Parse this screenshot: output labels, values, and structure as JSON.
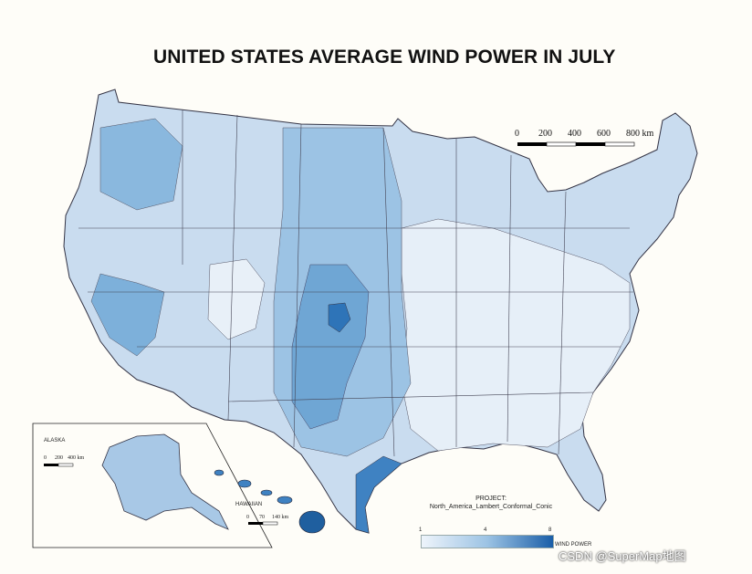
{
  "title": "UNITED STATES AVERAGE WIND POWER IN JULY",
  "scale_bar": {
    "labels": [
      "0",
      "200",
      "400",
      "600",
      "800 km"
    ]
  },
  "inset_alaska": {
    "label": "ALASKA",
    "scale_labels": [
      "0",
      "200",
      "400 km"
    ]
  },
  "inset_hawaii": {
    "label": "HAWAIIAN",
    "scale_labels": [
      "0",
      "70",
      "140 km"
    ]
  },
  "projection": {
    "line1": "PROJECT:",
    "line2": "North_America_Lambert_Conformal_Conic"
  },
  "legend": {
    "ticks": [
      "1",
      "4",
      "8"
    ],
    "label": "WIND POWER",
    "colors": [
      "#eef4fb",
      "#9cc3e4",
      "#1a5ea8"
    ]
  },
  "watermark": "CSDN @SuperMap地图"
}
